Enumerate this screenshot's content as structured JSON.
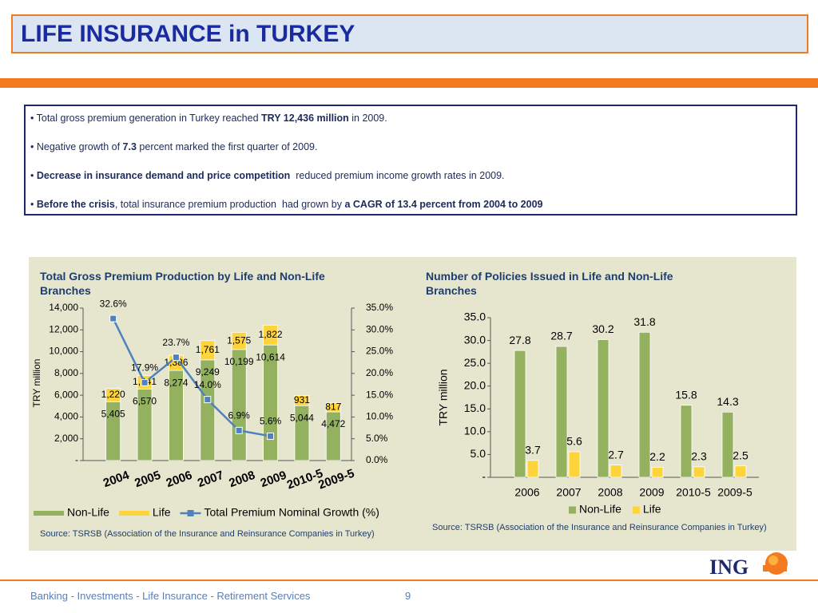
{
  "header": {
    "title": "LIFE INSURANCE in TURKEY"
  },
  "bullets": [
    [
      {
        "text": "• Total gross premium generation in Turkey reached ",
        "bold": false
      },
      {
        "text": "TRY 12,436 million",
        "bold": true
      },
      {
        "text": " in 2009.",
        "bold": false
      }
    ],
    [
      {
        "text": "• Negative growth of ",
        "bold": false
      },
      {
        "text": "7.3",
        "bold": true
      },
      {
        "text": " percent marked the first quarter of 2009.",
        "bold": false
      }
    ],
    [
      {
        "text": "• ",
        "bold": false
      },
      {
        "text": "Decrease in insurance demand and price competition",
        "bold": true
      },
      {
        "text": "  reduced premium income growth rates in 2009.",
        "bold": false
      }
    ],
    [
      {
        "text": "• ",
        "bold": false
      },
      {
        "text": "Before the crisis",
        "bold": true
      },
      {
        "text": ", total insurance premium production  had grown by ",
        "bold": false
      },
      {
        "text": "a CAGR of 13.4 percent from 2004 to 2009",
        "bold": true
      }
    ]
  ],
  "chart_data": [
    {
      "type": "bar",
      "stacked": true,
      "title": "Total Gross Premium Production by Life and Non-Life Branches",
      "ylabel": "TRY million",
      "categories": [
        "2004",
        "2005",
        "2006",
        "2007",
        "2008",
        "2009",
        "2010-5",
        "2009-5"
      ],
      "series": [
        {
          "name": "Non-Life",
          "color": "#93b15f",
          "values": [
            5405,
            6570,
            8274,
            9249,
            10199,
            10614,
            5044,
            4472
          ],
          "value_labels": [
            "5,405",
            "6,570",
            "8,274",
            "9,249",
            "10,199",
            "10,614",
            "5,044",
            "4,472"
          ]
        },
        {
          "name": "Life",
          "color": "#ffd43b",
          "values": [
            1220,
            1241,
            1386,
            1761,
            1575,
            1822,
            931,
            817
          ],
          "value_labels": [
            "1,220",
            "1,241",
            "1,386",
            "1,761",
            "1,575",
            "1,822",
            "931",
            "817"
          ]
        },
        {
          "name": "Total Premium Nominal Growth (%)",
          "type": "line",
          "axis": "y2",
          "color": "#4f81bd",
          "values": [
            32.6,
            17.9,
            23.7,
            14.0,
            6.9,
            5.6,
            null,
            null
          ],
          "value_labels": [
            "32.6%",
            "17.9%",
            "23.7%",
            "14.0%",
            "6.9%",
            "5.6%",
            null,
            null
          ]
        }
      ],
      "ylim": [
        0,
        14000
      ],
      "yticks": [
        {
          "value": 0,
          "label": "-"
        },
        {
          "value": 2000,
          "label": "2,000"
        },
        {
          "value": 4000,
          "label": "4,000"
        },
        {
          "value": 6000,
          "label": "6,000"
        },
        {
          "value": 8000,
          "label": "8,000"
        },
        {
          "value": 10000,
          "label": "10,000"
        },
        {
          "value": 12000,
          "label": "12,000"
        },
        {
          "value": 14000,
          "label": "14,000"
        }
      ],
      "y2lim": [
        0,
        35
      ],
      "y2ticks": [
        {
          "value": 0,
          "label": "0.0%"
        },
        {
          "value": 5,
          "label": "5.0%"
        },
        {
          "value": 10,
          "label": "10.0%"
        },
        {
          "value": 15,
          "label": "15.0%"
        },
        {
          "value": 20,
          "label": "20.0%"
        },
        {
          "value": 25,
          "label": "25.0%"
        },
        {
          "value": 30,
          "label": "30.0%"
        },
        {
          "value": 35,
          "label": "35.0%"
        }
      ],
      "legend": "bottom",
      "source": "Source: TSRSB (Association of the Insurance and Reinsurance Companies in Turkey)"
    },
    {
      "type": "bar",
      "stacked": false,
      "title": "Number of Policies Issued in Life and Non-Life Branches",
      "ylabel": "TRY million",
      "categories": [
        "2006",
        "2007",
        "2008",
        "2009",
        "2010-5",
        "2009-5"
      ],
      "series": [
        {
          "name": "Non-Life",
          "color": "#93b15f",
          "values": [
            27.8,
            28.7,
            30.2,
            31.8,
            15.8,
            14.3
          ]
        },
        {
          "name": "Life",
          "color": "#ffd43b",
          "values": [
            3.7,
            5.6,
            2.7,
            2.2,
            2.3,
            2.5
          ]
        }
      ],
      "ylim": [
        0,
        35
      ],
      "yticks": [
        {
          "value": 0,
          "label": "-"
        },
        {
          "value": 5,
          "label": "5.0"
        },
        {
          "value": 10,
          "label": "10.0"
        },
        {
          "value": 15,
          "label": "15.0"
        },
        {
          "value": 20,
          "label": "20.0"
        },
        {
          "value": 25,
          "label": "25.0"
        },
        {
          "value": 30,
          "label": "30.0"
        },
        {
          "value": 35,
          "label": "35.0"
        }
      ],
      "legend": "bottom",
      "source": "Source: TSRSB (Association of the Insurance and Reinsurance Companies in Turkey)"
    }
  ],
  "footer": {
    "text": "Banking - Investments - Life Insurance - Retirement Services",
    "page": "9",
    "logo": "ING"
  }
}
